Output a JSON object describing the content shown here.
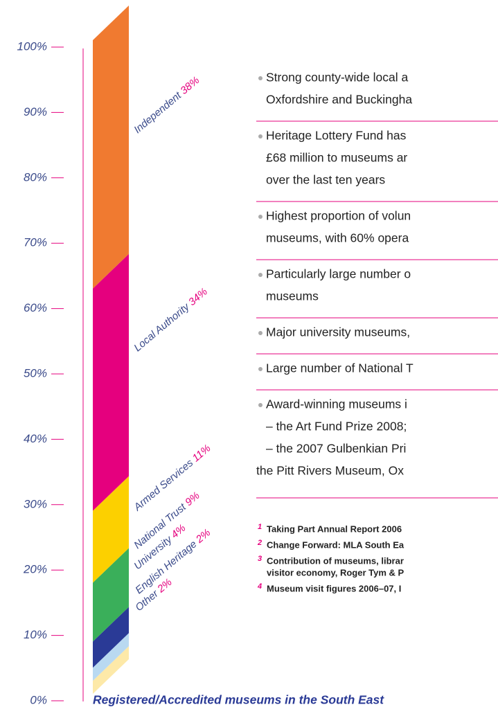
{
  "chart_data": {
    "type": "stacked-column",
    "title": "Registered/Accredited museums in the South East",
    "categories": [
      "Independent",
      "Local Authority",
      "Armed Services",
      "National Trust",
      "University",
      "English Heritage",
      "Other"
    ],
    "values": [
      38,
      34,
      11,
      9,
      4,
      2,
      2
    ],
    "value_labels": [
      "38%",
      "34%",
      "11%",
      "9%",
      "4%",
      "2%",
      "2%"
    ],
    "colors": [
      "#f07a30",
      "#e5007e",
      "#fcd000",
      "#3aaf5a",
      "#2a3a96",
      "#b9d9f1",
      "#fde9a8"
    ],
    "ylim": [
      0,
      100
    ],
    "yticks": [
      {
        "value": 0,
        "label": "0%"
      },
      {
        "value": 10,
        "label": "10%"
      },
      {
        "value": 20,
        "label": "20%"
      },
      {
        "value": 30,
        "label": "30%"
      },
      {
        "value": 40,
        "label": "40%"
      },
      {
        "value": 50,
        "label": "50%"
      },
      {
        "value": 60,
        "label": "60%"
      },
      {
        "value": 70,
        "label": "70%"
      },
      {
        "value": 80,
        "label": "80%"
      },
      {
        "value": 90,
        "label": "90%"
      },
      {
        "value": 100,
        "label": "100%"
      }
    ]
  },
  "bullets": [
    {
      "lines": [
        "Strong county-wide local a",
        "Oxfordshire and Buckingha"
      ]
    },
    {
      "lines": [
        "Heritage Lottery Fund has",
        "£68 million to museums ar",
        "over the last ten years"
      ]
    },
    {
      "lines": [
        "Highest proportion of volun",
        "museums, with 60% opera"
      ]
    },
    {
      "lines": [
        "Particularly large number o",
        "museums"
      ]
    },
    {
      "lines": [
        "Major university museums,"
      ]
    },
    {
      "lines": [
        "Large number of National T"
      ]
    },
    {
      "lines": [
        "Award-winning museums i",
        "– the Art Fund Prize 2008;",
        "– the 2007 Gulbenkian Pri",
        "the Pitt Rivers Museum, Ox"
      ]
    }
  ],
  "footnotes": [
    {
      "number": "1",
      "lines": [
        "Taking Part Annual Report 2006"
      ]
    },
    {
      "number": "2",
      "lines": [
        "Change Forward: MLA South Ea"
      ]
    },
    {
      "number": "3",
      "lines": [
        "Contribution of museums, librar",
        "visitor economy, Roger Tym & P"
      ]
    },
    {
      "number": "4",
      "lines": [
        "Museum visit figures 2006–07, I"
      ]
    }
  ]
}
